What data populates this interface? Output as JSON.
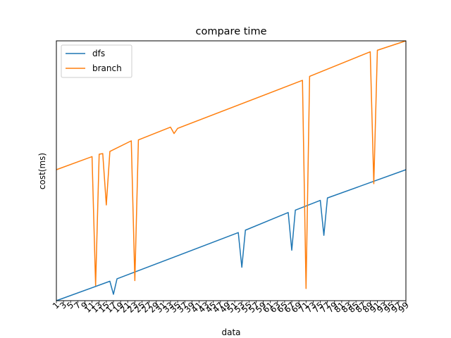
{
  "chart_data": {
    "type": "line",
    "title": "compare time",
    "xlabel": "data",
    "ylabel": "cost(ms)",
    "x_ticks": [
      "1",
      "3",
      "5",
      "7",
      "9",
      "11",
      "13",
      "15",
      "17",
      "19",
      "21",
      "23",
      "25",
      "27",
      "29",
      "31",
      "33",
      "35",
      "37",
      "39",
      "41",
      "43",
      "45",
      "47",
      "49",
      "51",
      "53",
      "55",
      "57",
      "59",
      "61",
      "63",
      "65",
      "67",
      "69",
      "71",
      "73",
      "75",
      "77",
      "79",
      "81",
      "83",
      "85",
      "87",
      "89",
      "91",
      "93",
      "95",
      "97",
      "99"
    ],
    "xlim": [
      1,
      99
    ],
    "y_tick_labels_shown": false,
    "grid": false,
    "legend": "top-left",
    "series": [
      {
        "name": "dfs",
        "color": "#1f77b4",
        "points": [
          [
            1,
            0
          ],
          [
            16,
            6.4
          ],
          [
            17,
            2.1
          ],
          [
            18,
            7.2
          ],
          [
            52,
            22.4
          ],
          [
            53,
            11.0
          ],
          [
            54,
            23.2
          ],
          [
            66,
            29.0
          ],
          [
            67,
            16.6
          ],
          [
            68,
            29.8
          ],
          [
            75,
            33.0
          ],
          [
            76,
            21.5
          ],
          [
            77,
            33.8
          ],
          [
            99,
            43.1
          ]
        ]
      },
      {
        "name": "branch",
        "color": "#ff7f0e",
        "points": [
          [
            1,
            43.1
          ],
          [
            11,
            47.4
          ],
          [
            12,
            5.0
          ],
          [
            13,
            48.2
          ],
          [
            14,
            48.4
          ],
          [
            15,
            31.5
          ],
          [
            16,
            49.1
          ],
          [
            22,
            52.6
          ],
          [
            23,
            6.6
          ],
          [
            24,
            52.9
          ],
          [
            33,
            57.1
          ],
          [
            34,
            55.0
          ],
          [
            35,
            56.7
          ],
          [
            70,
            72.5
          ],
          [
            71,
            4.0
          ],
          [
            72,
            73.8
          ],
          [
            89,
            81.9
          ],
          [
            90,
            38.5
          ],
          [
            91,
            82.4
          ],
          [
            99,
            85.5
          ]
        ]
      }
    ]
  }
}
